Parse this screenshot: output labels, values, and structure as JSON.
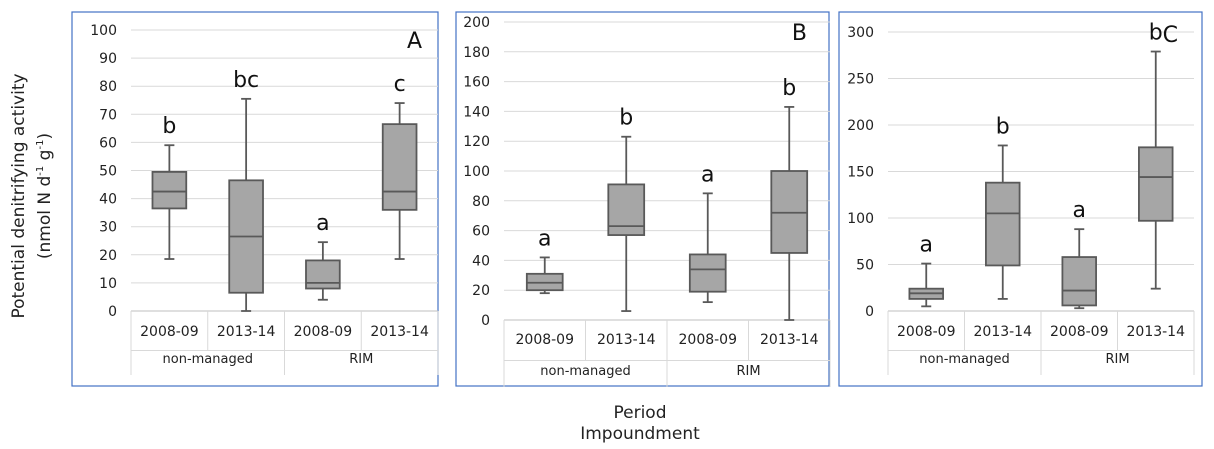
{
  "figure": {
    "y_axis_label_line1": "Potential denitrifying activity",
    "y_axis_label_line2_prefix": "(nmol N d",
    "y_axis_label_sup1": "-1",
    "y_axis_label_mid": " g",
    "y_axis_label_sup2": "-1",
    "y_axis_label_suffix": ")",
    "x_axis_label_line1": "Period",
    "x_axis_label_line2": "Impoundment"
  },
  "chart_data": [
    {
      "type": "box",
      "panel_label": "A",
      "ylim": [
        0,
        100
      ],
      "yticks": [
        0,
        10,
        20,
        30,
        40,
        50,
        60,
        70,
        80,
        90,
        100
      ],
      "categories": [
        "2008-09",
        "2013-14",
        "2008-09",
        "2013-14"
      ],
      "groups": [
        {
          "label": "non-managed",
          "span": 2
        },
        {
          "label": "RIM",
          "span": 2
        }
      ],
      "boxes": [
        {
          "min": 18.5,
          "q1": 36.5,
          "median": 42.5,
          "q3": 49.5,
          "max": 59,
          "letter": "b"
        },
        {
          "min": 0,
          "q1": 6.5,
          "median": 26.5,
          "q3": 46.5,
          "max": 75.5,
          "letter": "bc"
        },
        {
          "min": 4,
          "q1": 8,
          "median": 10,
          "q3": 18,
          "max": 24.5,
          "letter": "a"
        },
        {
          "min": 18.5,
          "q1": 36,
          "median": 42.5,
          "q3": 66.5,
          "max": 74,
          "letter": "c"
        }
      ]
    },
    {
      "type": "box",
      "panel_label": "B",
      "ylim": [
        0,
        200
      ],
      "yticks": [
        0,
        20,
        40,
        60,
        80,
        100,
        120,
        140,
        160,
        180,
        200
      ],
      "categories": [
        "2008-09",
        "2013-14",
        "2008-09",
        "2013-14"
      ],
      "groups": [
        {
          "label": "non-managed",
          "span": 2
        },
        {
          "label": "RIM",
          "span": 2
        }
      ],
      "boxes": [
        {
          "min": 18,
          "q1": 20,
          "median": 25,
          "q3": 31,
          "max": 42,
          "letter": "a"
        },
        {
          "min": 6,
          "q1": 57,
          "median": 63,
          "q3": 91,
          "max": 123,
          "letter": "b"
        },
        {
          "min": 12,
          "q1": 19,
          "median": 34,
          "q3": 44,
          "max": 85,
          "letter": "a"
        },
        {
          "min": 0,
          "q1": 45,
          "median": 72,
          "q3": 100,
          "max": 143,
          "letter": "b"
        }
      ]
    },
    {
      "type": "box",
      "panel_label": "C",
      "ylim": [
        0,
        300
      ],
      "yticks": [
        0,
        50,
        100,
        150,
        200,
        250,
        300
      ],
      "categories": [
        "2008-09",
        "2013-14",
        "2008-09",
        "2013-14"
      ],
      "groups": [
        {
          "label": "non-managed",
          "span": 2
        },
        {
          "label": "RIM",
          "span": 2
        }
      ],
      "boxes": [
        {
          "min": 5,
          "q1": 13,
          "median": 19,
          "q3": 24,
          "max": 51,
          "letter": "a"
        },
        {
          "min": 13,
          "q1": 49,
          "median": 105,
          "q3": 138,
          "max": 178,
          "letter": "b"
        },
        {
          "min": 3,
          "q1": 6,
          "median": 22,
          "q3": 58,
          "max": 88,
          "letter": "a"
        },
        {
          "min": 24,
          "q1": 97,
          "median": 144,
          "q3": 176,
          "max": 279,
          "letter": "b"
        }
      ]
    }
  ]
}
